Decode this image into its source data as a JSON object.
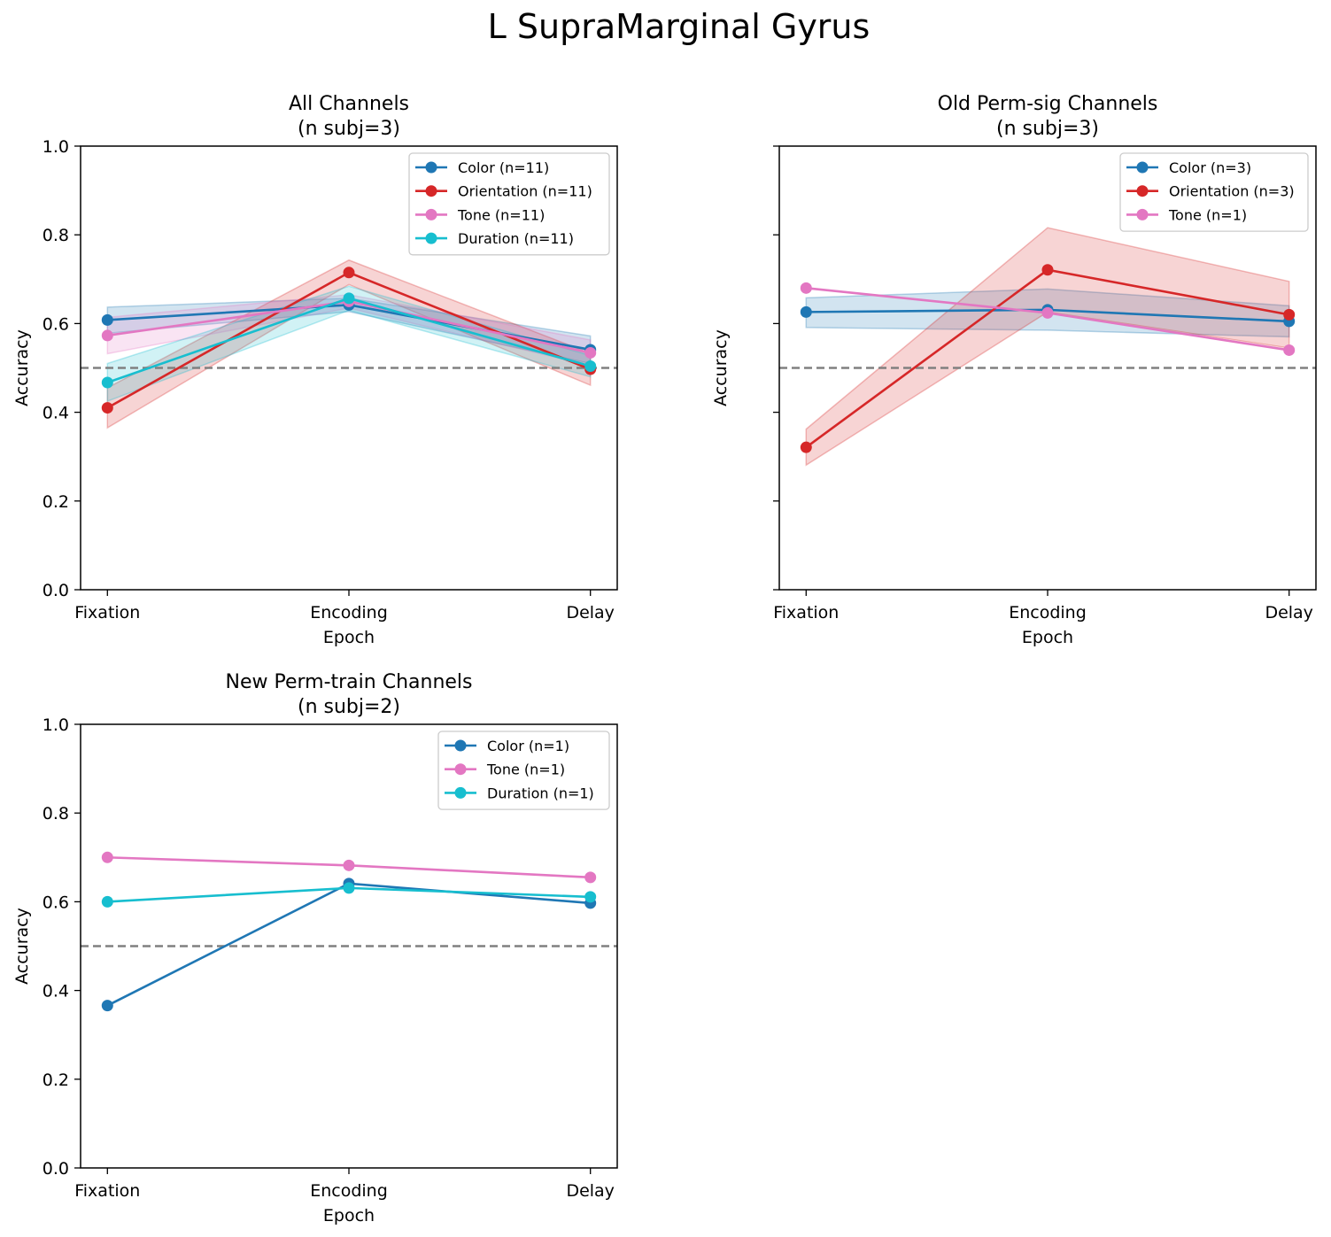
{
  "suptitle": "L SupraMarginal Gyrus",
  "chart_data": [
    {
      "type": "line",
      "title": "All Channels",
      "subtitle": "(n subj=3)",
      "xlabel": "Epoch",
      "ylabel": "Accuracy",
      "categories": [
        "Fixation",
        "Encoding",
        "Delay"
      ],
      "ylim": [
        0,
        1
      ],
      "yticks": [
        "0.0",
        "0.2",
        "0.4",
        "0.6",
        "0.8",
        "1.0"
      ],
      "show_ytick_labels": true,
      "chance_line": 0.5,
      "legend_position": "upper-right",
      "series": [
        {
          "name": "Color (n=11)",
          "color": "#1f77b4",
          "values": [
            0.608,
            0.642,
            0.541
          ],
          "lower": [
            0.578,
            0.627,
            0.51
          ],
          "upper": [
            0.637,
            0.657,
            0.572
          ]
        },
        {
          "name": "Orientation (n=11)",
          "color": "#d62728",
          "values": [
            0.41,
            0.715,
            0.497
          ],
          "lower": [
            0.365,
            0.688,
            0.461
          ],
          "upper": [
            0.455,
            0.743,
            0.533
          ]
        },
        {
          "name": "Tone (n=11)",
          "color": "#e377c2",
          "values": [
            0.573,
            0.65,
            0.534
          ],
          "lower": [
            0.532,
            0.635,
            0.505
          ],
          "upper": [
            0.614,
            0.665,
            0.563
          ]
        },
        {
          "name": "Duration (n=11)",
          "color": "#17becf",
          "values": [
            0.467,
            0.657,
            0.504
          ],
          "lower": [
            0.425,
            0.63,
            0.48
          ],
          "upper": [
            0.51,
            0.684,
            0.528
          ]
        }
      ]
    },
    {
      "type": "line",
      "title": "Old Perm-sig Channels",
      "subtitle": "(n subj=3)",
      "xlabel": "Epoch",
      "ylabel": "Accuracy",
      "categories": [
        "Fixation",
        "Encoding",
        "Delay"
      ],
      "ylim": [
        0,
        1
      ],
      "yticks": [
        "0.0",
        "0.2",
        "0.4",
        "0.6",
        "0.8",
        "1.0"
      ],
      "show_ytick_labels": false,
      "chance_line": 0.5,
      "legend_position": "upper-right",
      "series": [
        {
          "name": "Color (n=3)",
          "color": "#1f77b4",
          "values": [
            0.626,
            0.631,
            0.605
          ],
          "lower": [
            0.591,
            0.585,
            0.57
          ],
          "upper": [
            0.658,
            0.678,
            0.64
          ]
        },
        {
          "name": "Orientation (n=3)",
          "color": "#d62728",
          "values": [
            0.321,
            0.721,
            0.62
          ],
          "lower": [
            0.281,
            0.626,
            0.545
          ],
          "upper": [
            0.362,
            0.816,
            0.695
          ]
        },
        {
          "name": "Tone (n=1)",
          "color": "#e377c2",
          "values": [
            0.68,
            0.624,
            0.54
          ]
        }
      ]
    },
    {
      "type": "line",
      "title": "New Perm-train Channels",
      "subtitle": "(n subj=2)",
      "xlabel": "Epoch",
      "ylabel": "Accuracy",
      "categories": [
        "Fixation",
        "Encoding",
        "Delay"
      ],
      "ylim": [
        0,
        1
      ],
      "yticks": [
        "0.0",
        "0.2",
        "0.4",
        "0.6",
        "0.8",
        "1.0"
      ],
      "show_ytick_labels": true,
      "chance_line": 0.5,
      "legend_position": "upper-right",
      "series": [
        {
          "name": "Color (n=1)",
          "color": "#1f77b4",
          "values": [
            0.366,
            0.641,
            0.597
          ]
        },
        {
          "name": "Tone (n=1)",
          "color": "#e377c2",
          "values": [
            0.7,
            0.682,
            0.655
          ]
        },
        {
          "name": "Duration (n=1)",
          "color": "#17becf",
          "values": [
            0.6,
            0.631,
            0.611
          ]
        }
      ]
    }
  ]
}
